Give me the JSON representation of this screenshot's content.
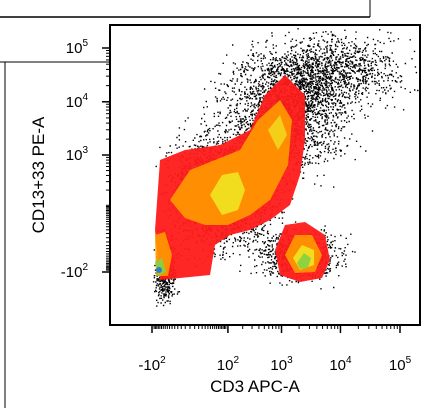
{
  "chart_data": {
    "type": "heatmap",
    "subtype": "flow-cytometry density dot plot",
    "title": "",
    "xlabel": "CD3 APC-A",
    "ylabel": "CD13+33 PE-A",
    "x_scale": "biexponential",
    "y_scale": "biexponential",
    "x_tick_labels": [
      {
        "base": "-10",
        "exp": "2",
        "value": -100
      },
      {
        "base": "10",
        "exp": "2",
        "value": 100
      },
      {
        "base": "10",
        "exp": "3",
        "value": 1000
      },
      {
        "base": "10",
        "exp": "4",
        "value": 10000
      },
      {
        "base": "10",
        "exp": "5",
        "value": 100000
      }
    ],
    "y_tick_labels": [
      {
        "base": "-10",
        "exp": "2",
        "value": -100
      },
      {
        "base": "10",
        "exp": "3",
        "value": 1000
      },
      {
        "base": "10",
        "exp": "4",
        "value": 10000
      },
      {
        "base": "10",
        "exp": "5",
        "value": 100000
      }
    ],
    "populations": [
      {
        "name": "",
        "center": [
          3000,
          2500
        ],
        "color_peak": "#e8d020",
        "note": "large CD13+33 positive cluster"
      },
      {
        "name": "",
        "center": [
          5000,
          -60
        ],
        "color_peak": "#7ed040",
        "note": "CD3 positive, CD13+33 negative cluster"
      },
      {
        "name": "",
        "center": [
          -100,
          -100
        ],
        "color_peak": "#2a80d0",
        "note": "double negative corner"
      }
    ],
    "grid": false,
    "colors": {
      "sparse": "#000000",
      "low": "#ff1a1a",
      "mid": "#ff9a00",
      "high": "#f0e020",
      "peak_green": "#8ad040",
      "peak_blue": "#2a80d0"
    }
  }
}
